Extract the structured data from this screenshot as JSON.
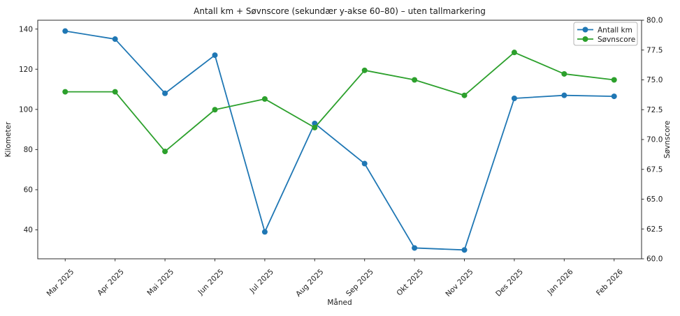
{
  "chart_data": {
    "type": "line",
    "title": "Antall km + Søvnscore (sekundær y-akse 60–80) – uten tallmarkering",
    "xlabel": "Måned",
    "categories": [
      "Mar 2025",
      "Apr 2025",
      "Mai 2025",
      "Jun 2025",
      "Jul 2025",
      "Aug 2025",
      "Sep 2025",
      "Okt 2025",
      "Nov 2025",
      "Des 2025",
      "Jan 2026",
      "Feb 2026"
    ],
    "series": [
      {
        "name": "Antall km",
        "axis": "left",
        "color": "#1f77b4",
        "values": [
          139,
          135,
          108,
          127,
          39,
          93,
          73,
          31,
          30,
          105.5,
          107,
          106.5
        ]
      },
      {
        "name": "Søvnscore",
        "axis": "right",
        "color": "#2ca02c",
        "values": [
          74.0,
          74.0,
          69.0,
          72.5,
          73.4,
          71.0,
          75.8,
          75.0,
          73.7,
          77.3,
          75.5,
          75.0
        ]
      }
    ],
    "y_left": {
      "label": "Kilometer",
      "color": "#1f77b4",
      "ylim": [
        25.6,
        144.4
      ],
      "ticks": [
        "40",
        "60",
        "80",
        "100",
        "120",
        "140"
      ]
    },
    "y_right": {
      "label": "Søvnscore",
      "color": "#2ca02c",
      "ylim": [
        60.0,
        80.0
      ],
      "ticks": [
        "60.0",
        "62.5",
        "65.0",
        "67.5",
        "70.0",
        "72.5",
        "75.0",
        "77.5",
        "80.0"
      ]
    },
    "legend": {
      "position": "upper right",
      "entries": [
        "Antall km",
        "Søvnscore"
      ]
    },
    "grid": false,
    "marker": "o",
    "spine_color": "#2e2e2e",
    "tick_text_color": "#262626"
  }
}
